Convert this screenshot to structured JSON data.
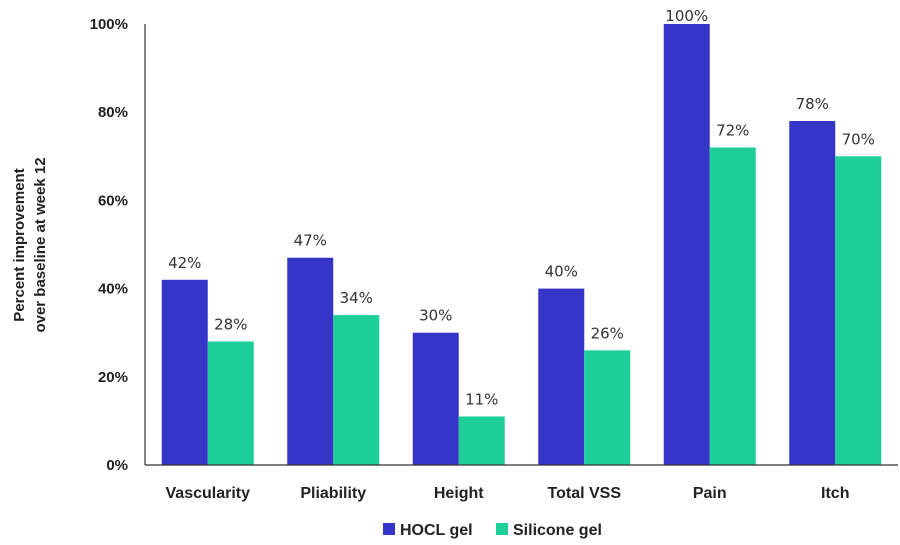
{
  "chart_data": {
    "type": "bar",
    "categories": [
      "Vascularity",
      "Pliability",
      "Height",
      "Total VSS",
      "Pain",
      "Itch"
    ],
    "series": [
      {
        "name": "HOCL gel",
        "color": "#3535c8",
        "values": [
          42,
          47,
          30,
          40,
          100,
          78
        ],
        "labels": [
          "42%",
          "47%",
          "30%",
          "40%",
          "100%",
          "78%"
        ]
      },
      {
        "name": "Silicone gel",
        "color": "#1fcf9a",
        "values": [
          28,
          34,
          11,
          26,
          72,
          70
        ],
        "labels": [
          "28%",
          "34%",
          "11%",
          "26%",
          "72%",
          "70%"
        ]
      }
    ],
    "ylabel_lines": [
      "Percent improvement",
      "over baseline at week 12"
    ],
    "ylim": [
      0,
      100
    ],
    "yticks": [
      0,
      20,
      40,
      60,
      80,
      100
    ],
    "ytick_labels": [
      "0%",
      "20%",
      "40%",
      "60%",
      "80%",
      "100%"
    ],
    "grid": false,
    "legend_position": "bottom"
  }
}
